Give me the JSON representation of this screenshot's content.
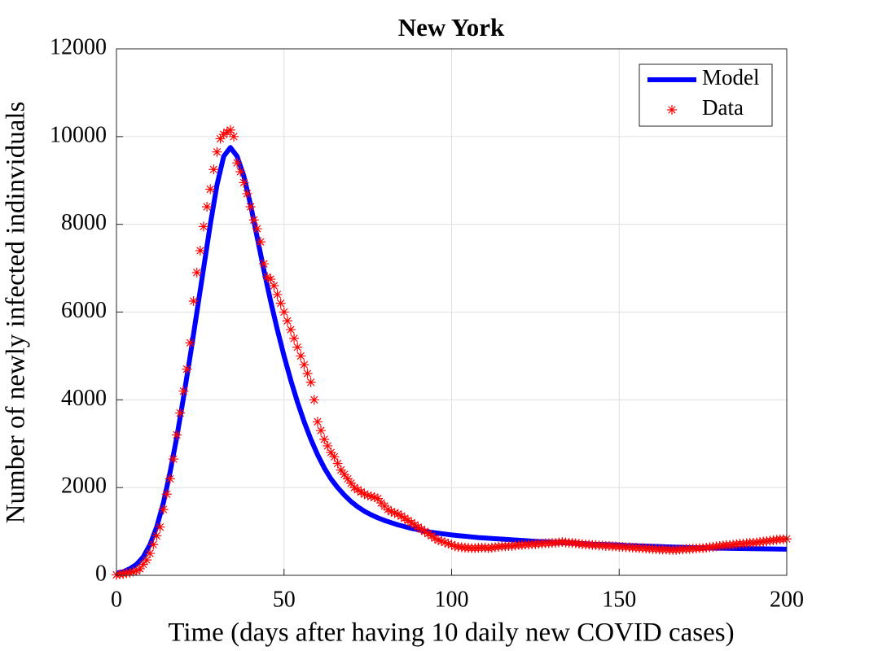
{
  "chart_data": {
    "type": "line",
    "title": "New York",
    "xlabel": "Time (days after having 10 daily new COVID cases)",
    "ylabel": "Number of newly infected indinviduals",
    "xlim": [
      0,
      200
    ],
    "ylim": [
      0,
      12000
    ],
    "xticks": [
      0,
      50,
      100,
      150,
      200
    ],
    "yticks": [
      0,
      2000,
      4000,
      6000,
      8000,
      10000,
      12000
    ],
    "grid": true,
    "legend": "upper right",
    "series": [
      {
        "name": "Model",
        "color": "#0000ff",
        "marker": "none",
        "x": [
          0,
          2,
          4,
          6,
          8,
          10,
          12,
          14,
          16,
          18,
          20,
          22,
          24,
          26,
          28,
          30,
          32,
          34,
          36,
          38,
          40,
          42,
          44,
          46,
          48,
          50,
          52,
          54,
          56,
          58,
          60,
          62,
          64,
          66,
          68,
          70,
          72,
          74,
          76,
          78,
          80,
          82,
          84,
          86,
          88,
          90,
          92,
          94,
          96,
          98,
          100,
          102,
          104,
          106,
          108,
          110,
          112,
          114,
          116,
          118,
          120,
          122,
          124,
          126,
          128,
          130,
          132,
          134,
          136,
          138,
          140,
          142,
          144,
          146,
          148,
          150,
          152,
          154,
          156,
          158,
          160,
          162,
          164,
          166,
          168,
          170,
          172,
          174,
          176,
          178,
          180,
          182,
          184,
          186,
          188,
          190,
          192,
          194,
          196,
          198,
          200
        ],
        "values": [
          50,
          80,
          150,
          250,
          420,
          700,
          1100,
          1650,
          2350,
          3150,
          4050,
          5000,
          6000,
          7000,
          8000,
          8900,
          9550,
          9750,
          9550,
          9100,
          8450,
          7700,
          6950,
          6250,
          5600,
          5000,
          4450,
          3950,
          3500,
          3100,
          2750,
          2450,
          2200,
          2000,
          1830,
          1680,
          1560,
          1460,
          1380,
          1310,
          1250,
          1200,
          1150,
          1110,
          1070,
          1040,
          1010,
          980,
          960,
          940,
          920,
          905,
          890,
          875,
          860,
          850,
          840,
          830,
          820,
          810,
          800,
          790,
          780,
          770,
          765,
          755,
          750,
          740,
          735,
          725,
          720,
          710,
          705,
          700,
          695,
          690,
          680,
          675,
          670,
          665,
          660,
          655,
          650,
          645,
          640,
          635,
          630,
          628,
          625,
          622,
          620,
          617,
          614,
          612,
          610,
          608,
          605,
          603,
          600,
          598,
          596
        ]
      },
      {
        "name": "Data",
        "color": "#ff0000",
        "marker": "*",
        "x": [
          0,
          1,
          2,
          3,
          4,
          5,
          6,
          7,
          8,
          9,
          10,
          11,
          12,
          13,
          14,
          15,
          16,
          17,
          18,
          19,
          20,
          21,
          22,
          23,
          24,
          25,
          26,
          27,
          28,
          29,
          30,
          31,
          32,
          33,
          34,
          35,
          36,
          37,
          38,
          39,
          40,
          41,
          42,
          43,
          44,
          45,
          46,
          47,
          48,
          49,
          50,
          51,
          52,
          53,
          54,
          55,
          56,
          57,
          58,
          59,
          60,
          61,
          62,
          63,
          64,
          65,
          66,
          67,
          68,
          69,
          70,
          71,
          72,
          73,
          74,
          75,
          76,
          77,
          78,
          79,
          80,
          81,
          82,
          83,
          84,
          85,
          86,
          87,
          88,
          89,
          90,
          91,
          92,
          93,
          94,
          95,
          96,
          97,
          98,
          99,
          100,
          101,
          102,
          103,
          104,
          105,
          106,
          107,
          108,
          109,
          110,
          111,
          112,
          113,
          114,
          115,
          116,
          117,
          118,
          119,
          120,
          121,
          122,
          123,
          124,
          125,
          126,
          127,
          128,
          129,
          130,
          131,
          132,
          133,
          134,
          135,
          136,
          137,
          138,
          139,
          140,
          141,
          142,
          143,
          144,
          145,
          146,
          147,
          148,
          149,
          150,
          151,
          152,
          153,
          154,
          155,
          156,
          157,
          158,
          159,
          160,
          161,
          162,
          163,
          164,
          165,
          166,
          167,
          168,
          169,
          170,
          171,
          172,
          173,
          174,
          175,
          176,
          177,
          178,
          179,
          180,
          181,
          182,
          183,
          184,
          185,
          186,
          187,
          188,
          189,
          190,
          191,
          192,
          193,
          194,
          195,
          196,
          197,
          198,
          199,
          200
        ],
        "values": [
          10,
          20,
          30,
          50,
          60,
          80,
          100,
          150,
          250,
          350,
          500,
          700,
          900,
          1100,
          1500,
          1850,
          2200,
          2650,
          3200,
          3700,
          4200,
          4700,
          5300,
          6250,
          6900,
          7400,
          7950,
          8400,
          8800,
          9250,
          9650,
          9950,
          10050,
          10100,
          10150,
          10000,
          9400,
          9200,
          8950,
          8700,
          8400,
          8100,
          7900,
          7600,
          7100,
          6800,
          6750,
          6600,
          6400,
          6200,
          6000,
          5800,
          5600,
          5400,
          5200,
          5000,
          4800,
          4600,
          4400,
          4000,
          3500,
          3300,
          3100,
          2950,
          2800,
          2700,
          2550,
          2400,
          2300,
          2200,
          2100,
          2000,
          1950,
          1900,
          1850,
          1820,
          1800,
          1780,
          1750,
          1650,
          1580,
          1500,
          1450,
          1420,
          1400,
          1350,
          1300,
          1250,
          1200,
          1150,
          1100,
          1050,
          1000,
          950,
          900,
          850,
          800,
          780,
          750,
          720,
          700,
          660,
          650,
          640,
          630,
          625,
          620,
          620,
          625,
          630,
          630,
          620,
          630,
          640,
          650,
          660,
          660,
          670,
          670,
          680,
          690,
          690,
          700,
          700,
          710,
          710,
          720,
          720,
          730,
          730,
          740,
          740,
          750,
          760,
          750,
          740,
          740,
          730,
          720,
          710,
          700,
          700,
          690,
          690,
          680,
          680,
          670,
          670,
          660,
          660,
          650,
          650,
          640,
          640,
          630,
          630,
          620,
          620,
          610,
          610,
          600,
          600,
          590,
          590,
          590,
          580,
          580,
          580,
          590,
          590,
          600,
          600,
          610,
          610,
          620,
          620,
          630,
          640,
          650,
          660,
          670,
          680,
          690,
          690,
          700,
          710,
          720,
          720,
          730,
          740,
          740,
          750,
          760,
          770,
          780,
          790,
          800,
          810,
          820,
          820,
          830
        ]
      }
    ]
  }
}
